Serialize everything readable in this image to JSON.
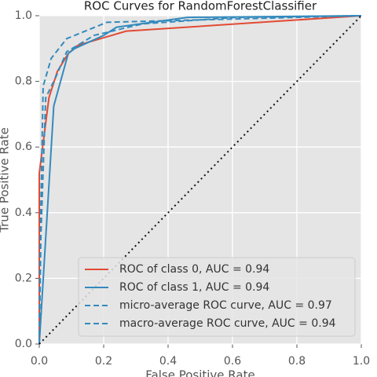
{
  "chart_data": {
    "type": "line",
    "title": "ROC Curves for RandomForestClassifier",
    "xlabel": "False Positive Rate",
    "ylabel": "True Positive Rate",
    "xlim": [
      0,
      1
    ],
    "ylim": [
      0,
      1
    ],
    "xticks": [
      {
        "value": 0,
        "label": "0.0"
      },
      0.2,
      0.4,
      0.6,
      0.8,
      {
        "value": 1,
        "label": "1.0"
      }
    ],
    "yticks": [
      {
        "value": 0,
        "label": "0.0"
      },
      0.2,
      0.4,
      0.6,
      0.8,
      {
        "value": 1,
        "label": "1.0"
      }
    ],
    "grid": true,
    "legend": "lower right",
    "series": [
      {
        "name": "ROC of class 0, AUC = 0.94",
        "color": "#e24a33",
        "dash": "solid",
        "x": [
          0,
          0,
          0.03,
          0.056,
          0.09,
          0.12,
          0.27,
          1
        ],
        "values": [
          0,
          0.52,
          0.75,
          0.83,
          0.885,
          0.91,
          0.953,
          1
        ]
      },
      {
        "name": "ROC of class 1, AUC = 0.94",
        "color": "#348abd",
        "dash": "solid",
        "x": [
          0,
          0.045,
          0.09,
          0.11,
          0.2,
          0.24,
          0.46,
          1
        ],
        "values": [
          0,
          0.725,
          0.885,
          0.9,
          0.94,
          0.965,
          0.995,
          1
        ]
      },
      {
        "name": "micro-average ROC curve, AUC = 0.97",
        "color": "#348abd",
        "dash": "dashed",
        "x": [
          0,
          0.002,
          0.012,
          0.037,
          0.085,
          0.21,
          1
        ],
        "values": [
          0,
          0.26,
          0.785,
          0.87,
          0.93,
          0.98,
          1
        ]
      },
      {
        "name": "macro-average ROC curve, AUC = 0.94",
        "color": "#348abd",
        "dash": "dashed",
        "x": [
          0,
          0.005,
          0.02,
          0.05,
          0.085,
          0.17,
          0.32,
          0.61,
          1
        ],
        "values": [
          0,
          0.33,
          0.75,
          0.81,
          0.89,
          0.94,
          0.975,
          0.995,
          1
        ]
      }
    ]
  }
}
